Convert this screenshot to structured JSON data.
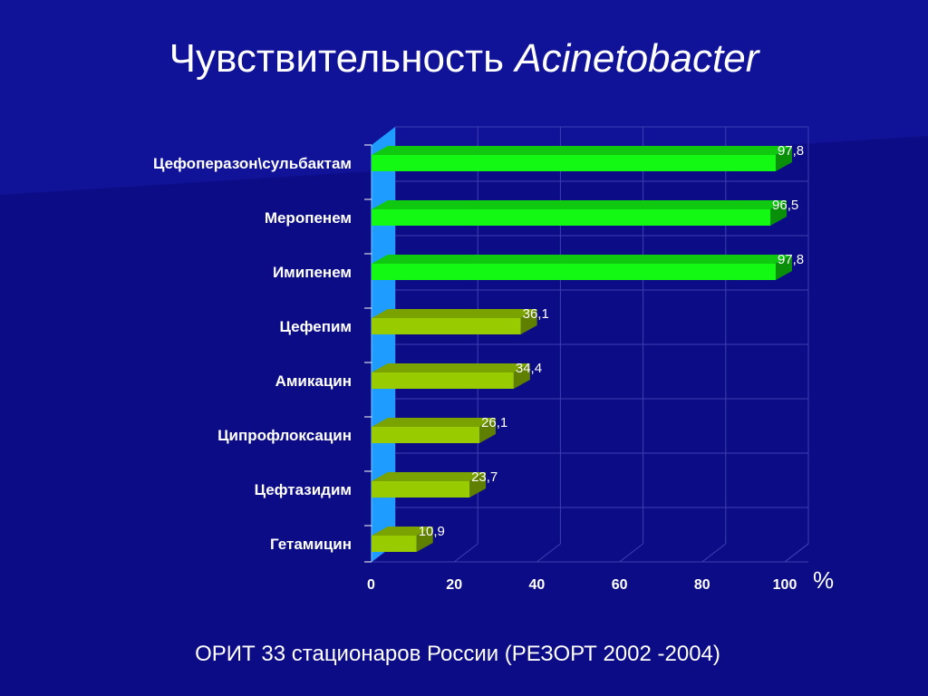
{
  "slide": {
    "title_main": "Чувствительность ",
    "title_italic": "Acinetobacter",
    "footer": "ОРИТ 33 стационаров России (РЕЗОРТ 2002 -2004)",
    "unit": "%"
  },
  "colors": {
    "background": "#0c0d86",
    "bright_bar": "#13f913",
    "bright_bar_top": "#0fc80f",
    "bright_bar_side": "#0a8f0a",
    "olive_bar": "#99cc00",
    "olive_bar_top": "#7aa300",
    "olive_bar_side": "#5f7f00",
    "wall": "#1e9cff",
    "grid": "#3e3fb2"
  },
  "chart_data": {
    "type": "bar",
    "orientation": "horizontal",
    "categories": [
      "Цефоперазон\\сульбактам",
      "Меропенем",
      "Имипенем",
      "Цефепим",
      "Амикацин",
      "Ципрофлоксацин",
      "Цефтазидим",
      "Гетамицин"
    ],
    "values": [
      97.8,
      96.5,
      97.8,
      36.1,
      34.4,
      26.1,
      23.7,
      10.9
    ],
    "value_labels": [
      "97,8",
      "96,5",
      "97,8",
      "36,1",
      "34,4",
      "26,1",
      "23,7",
      "10,9"
    ],
    "highlight": [
      true,
      true,
      true,
      false,
      false,
      false,
      false,
      false
    ],
    "x_ticks": [
      "0",
      "20",
      "40",
      "60",
      "80",
      "100"
    ],
    "x_tick_values": [
      0,
      20,
      40,
      60,
      80,
      100
    ],
    "xlim": [
      0,
      100
    ],
    "grid": true,
    "legend": "none"
  }
}
